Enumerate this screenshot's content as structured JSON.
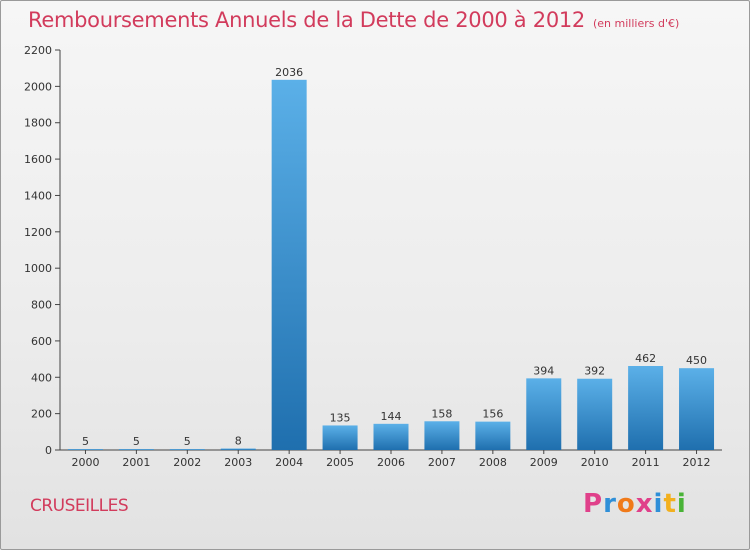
{
  "header": {
    "title": "Remboursements Annuels de la Dette de 2000 à 2012",
    "unit": "(en milliers d'€)"
  },
  "footer": {
    "city": "CRUSEILLES",
    "logo_text": "Proxiti",
    "logo_colors": [
      "#e0408a",
      "#2f8fd8",
      "#f07a1a",
      "#e0408a",
      "#2f8fd8",
      "#f2b01e",
      "#49b337"
    ]
  },
  "colors": {
    "accent": "#d23b5c",
    "bar_top": "#5bb0e8",
    "bar_bottom": "#1f6fae",
    "axis": "#444444",
    "grid": "#d9d9d9"
  },
  "chart_data": {
    "type": "bar",
    "title": "Remboursements Annuels de la Dette de 2000 à 2012",
    "subtitle": "(en milliers d'€)",
    "xlabel": "",
    "ylabel": "",
    "categories": [
      "2000",
      "2001",
      "2002",
      "2003",
      "2004",
      "2005",
      "2006",
      "2007",
      "2008",
      "2009",
      "2010",
      "2011",
      "2012"
    ],
    "values": [
      5,
      5,
      5,
      8,
      2036,
      135,
      144,
      158,
      156,
      394,
      392,
      462,
      450
    ],
    "ylim": [
      0,
      2200
    ],
    "yticks": [
      0,
      200,
      400,
      600,
      800,
      1000,
      1200,
      1400,
      1600,
      1800,
      2000,
      2200
    ],
    "grid": false,
    "data_labels": true
  }
}
